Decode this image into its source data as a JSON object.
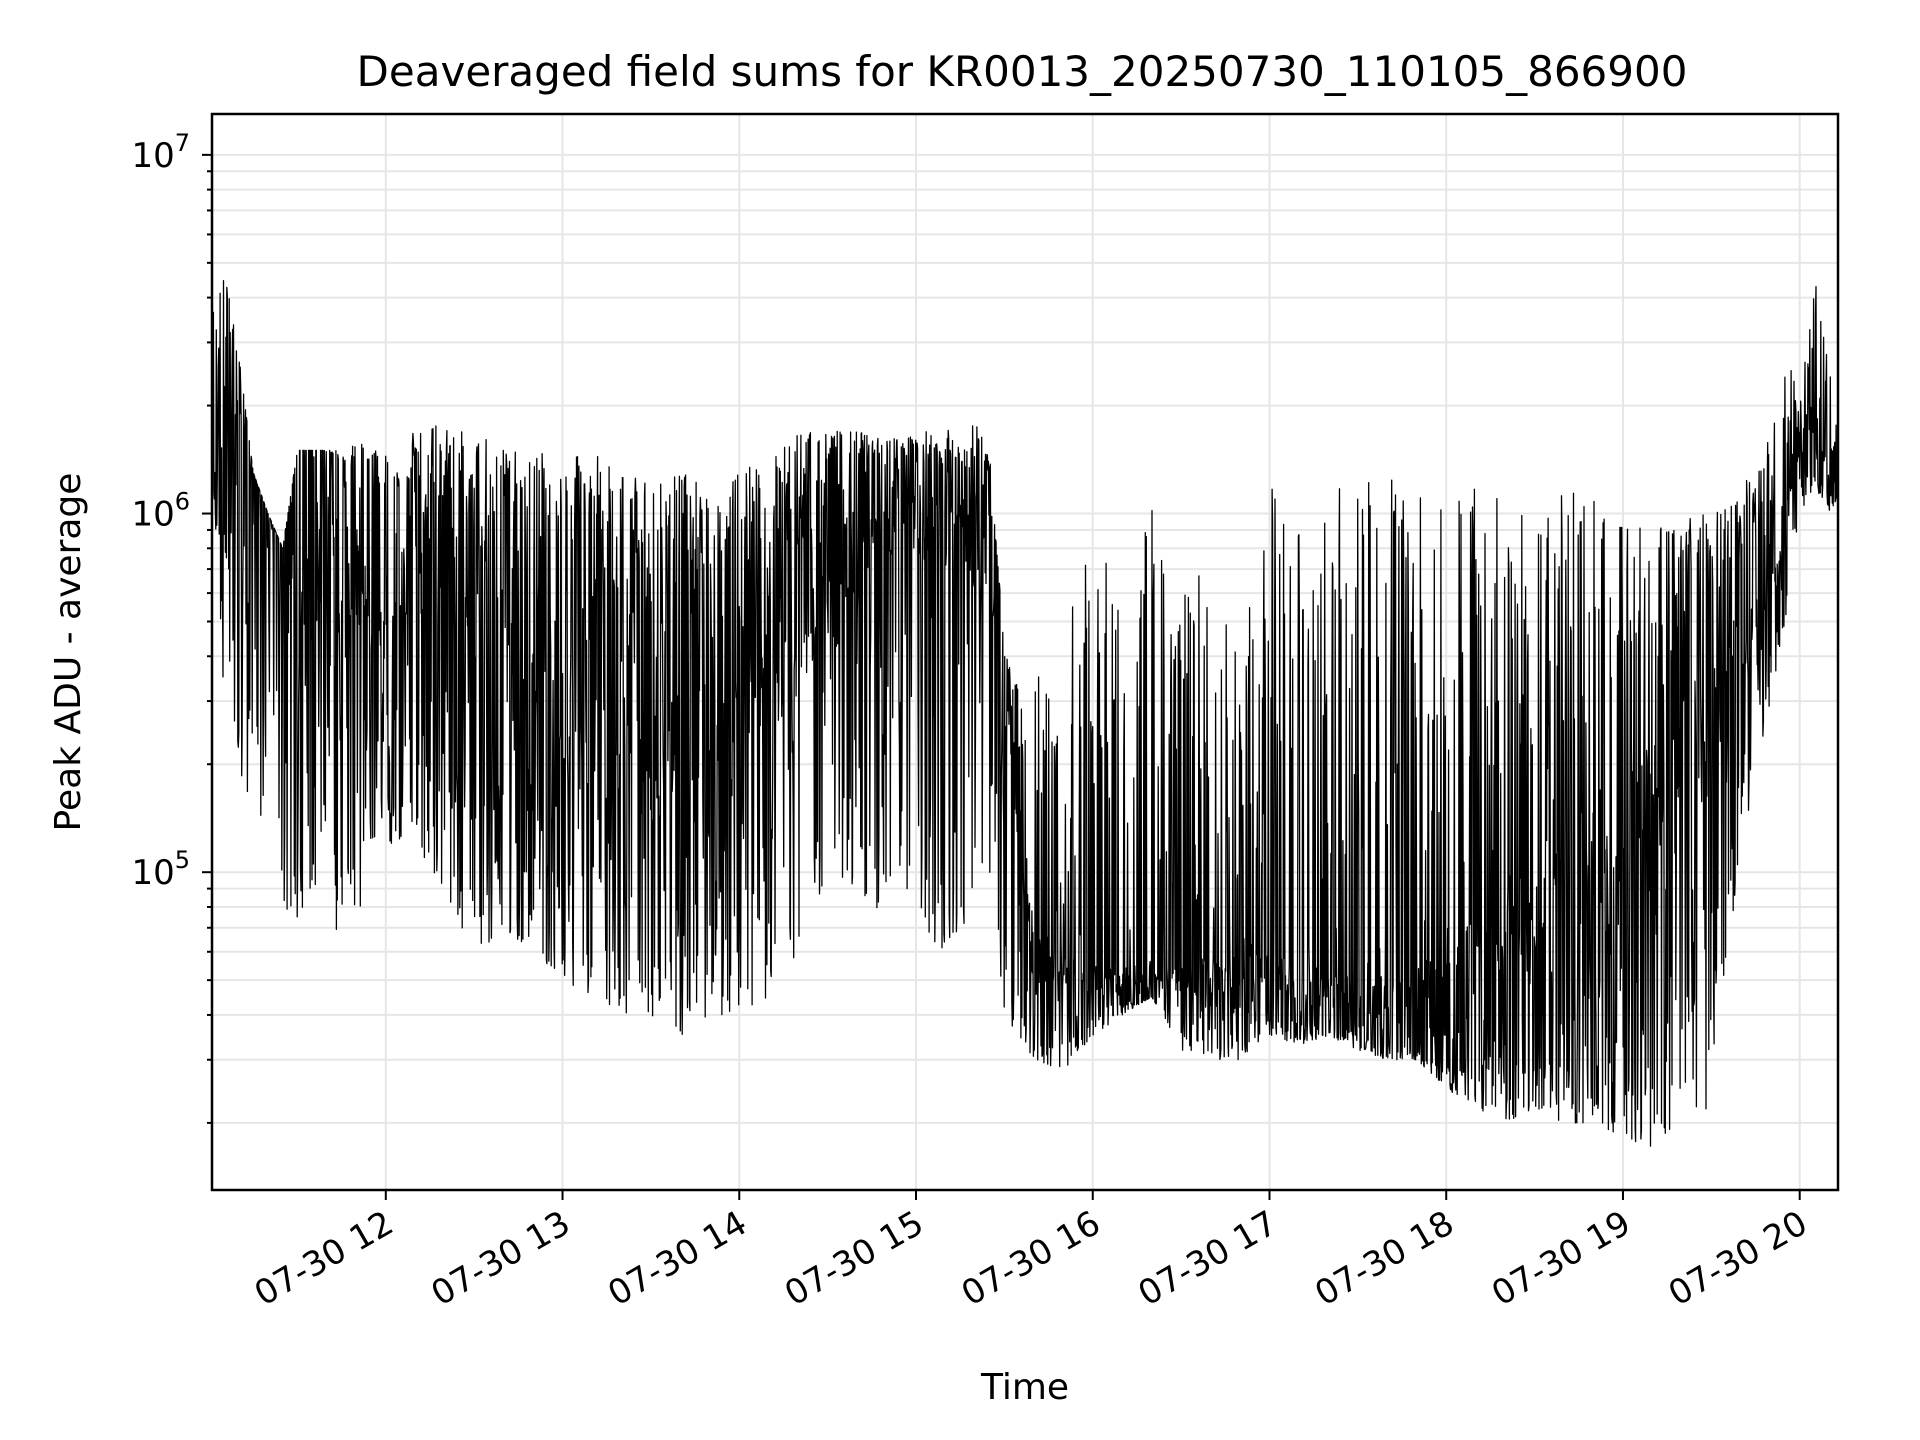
{
  "chart_data": {
    "type": "line",
    "title": "Deaveraged field sums for KR0013_20250730_110105_866900",
    "xlabel": "Time",
    "ylabel": "Peak ADU - average",
    "x_scale": "time",
    "y_scale": "log",
    "xlim": [
      "2025-07-30 11:01",
      "2025-07-30 20:13"
    ],
    "ylim": [
      13000,
      13000000
    ],
    "grid": true,
    "x_ticks": [
      {
        "value": "2025-07-30 12:00",
        "label": "07-30 12"
      },
      {
        "value": "2025-07-30 13:00",
        "label": "07-30 13"
      },
      {
        "value": "2025-07-30 14:00",
        "label": "07-30 14"
      },
      {
        "value": "2025-07-30 15:00",
        "label": "07-30 15"
      },
      {
        "value": "2025-07-30 16:00",
        "label": "07-30 16"
      },
      {
        "value": "2025-07-30 17:00",
        "label": "07-30 17"
      },
      {
        "value": "2025-07-30 18:00",
        "label": "07-30 18"
      },
      {
        "value": "2025-07-30 19:00",
        "label": "07-30 19"
      },
      {
        "value": "2025-07-30 20:00",
        "label": "07-30 20"
      }
    ],
    "y_ticks": [
      {
        "value": 100000,
        "base": "10",
        "exp": "5"
      },
      {
        "value": 1000000,
        "base": "10",
        "exp": "6"
      },
      {
        "value": 10000000,
        "base": "10",
        "exp": "7"
      }
    ],
    "series": [
      {
        "color": "#000000",
        "envelope_x": [
          "11:01",
          "11:05",
          "11:10",
          "11:15",
          "11:20",
          "11:25",
          "11:30",
          "11:35",
          "11:40",
          "11:45",
          "11:50",
          "11:55",
          "12:00",
          "12:10",
          "12:20",
          "12:30",
          "12:40",
          "12:50",
          "13:00",
          "13:10",
          "13:20",
          "13:30",
          "13:40",
          "13:50",
          "14:00",
          "14:10",
          "14:20",
          "14:30",
          "14:40",
          "14:50",
          "15:00",
          "15:10",
          "15:20",
          "15:25",
          "15:30",
          "15:35",
          "15:40",
          "15:50",
          "16:00",
          "16:10",
          "16:20",
          "16:30",
          "16:40",
          "16:50",
          "17:00",
          "17:10",
          "17:20",
          "17:30",
          "17:40",
          "17:50",
          "18:00",
          "18:10",
          "18:20",
          "18:30",
          "18:40",
          "18:50",
          "19:00",
          "19:10",
          "19:20",
          "19:30",
          "19:40",
          "19:45",
          "19:50",
          "19:55",
          "20:00",
          "20:05",
          "20:10",
          "20:13"
        ],
        "envelope_high": [
          3500000,
          4900000,
          2800000,
          1300000,
          1000000,
          800000,
          1500000,
          1500000,
          1500000,
          1500000,
          1600000,
          1500000,
          1500000,
          1700000,
          1800000,
          1700000,
          1500000,
          1500000,
          1400000,
          1500000,
          1300000,
          1300000,
          1300000,
          1200000,
          1300000,
          1500000,
          1700000,
          1700000,
          1700000,
          1600000,
          1700000,
          1700000,
          1800000,
          1600000,
          400000,
          360000,
          350000,
          500000,
          850000,
          600000,
          1100000,
          600000,
          800000,
          450000,
          1200000,
          900000,
          1200000,
          1200000,
          1300000,
          1400000,
          1300000,
          1200000,
          1200000,
          1200000,
          1200000,
          1100000,
          1000000,
          1000000,
          1000000,
          1000000,
          1100000,
          1500000,
          1700000,
          3000000,
          2000000,
          4800000,
          2800000,
          2900000
        ],
        "envelope_low": [
          1500000,
          300000,
          200000,
          100000,
          200000,
          80000,
          75000,
          90000,
          85000,
          50000,
          70000,
          100000,
          120000,
          120000,
          90000,
          55000,
          70000,
          60000,
          50000,
          45000,
          40000,
          38000,
          35000,
          40000,
          40000,
          45000,
          60000,
          100000,
          90000,
          75000,
          70000,
          60000,
          80000,
          100000,
          40000,
          35000,
          30000,
          28000,
          35000,
          40000,
          45000,
          32000,
          30000,
          30000,
          35000,
          33000,
          35000,
          32000,
          30000,
          30000,
          25000,
          22000,
          20000,
          22000,
          20000,
          20000,
          18000,
          17000,
          20000,
          22000,
          120000,
          170000,
          300000,
          500000,
          1000000,
          1200000,
          1000000,
          1100000
        ],
        "band": [
          {
            "x": "11:00",
            "low": 1200000,
            "high": 3200000
          },
          {
            "x": "12:00",
            "low": 200000,
            "high": 1000000
          },
          {
            "x": "13:00",
            "low": 150000,
            "high": 800000
          },
          {
            "x": "14:00",
            "low": 150000,
            "high": 600000
          },
          {
            "x": "14:45",
            "low": 800000,
            "high": 1400000
          },
          {
            "x": "15:25",
            "low": 600000,
            "high": 1200000
          },
          {
            "x": "15:40",
            "low": 45000,
            "high": 70000
          },
          {
            "x": "16:00",
            "low": 45000,
            "high": 55000
          },
          {
            "x": "17:00",
            "low": 40000,
            "high": 60000
          },
          {
            "x": "17:30",
            "low": 35000,
            "high": 50000
          },
          {
            "x": "18:00",
            "low": 30000,
            "high": 60000
          },
          {
            "x": "18:30",
            "low": 30000,
            "high": 120000
          },
          {
            "x": "19:00",
            "low": 40000,
            "high": 200000
          },
          {
            "x": "19:30",
            "low": 150000,
            "high": 500000
          },
          {
            "x": "19:50",
            "low": 500000,
            "high": 800000
          },
          {
            "x": "20:00",
            "low": 1400000,
            "high": 1800000
          },
          {
            "x": "20:13",
            "low": 1100000,
            "high": 1600000
          }
        ]
      }
    ]
  }
}
